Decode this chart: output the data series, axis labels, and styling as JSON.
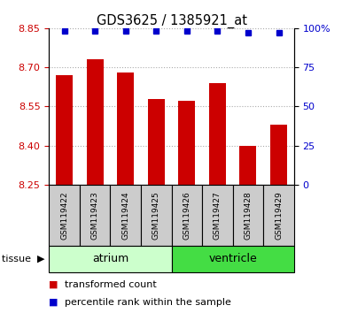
{
  "title": "GDS3625 / 1385921_at",
  "samples": [
    "GSM119422",
    "GSM119423",
    "GSM119424",
    "GSM119425",
    "GSM119426",
    "GSM119427",
    "GSM119428",
    "GSM119429"
  ],
  "red_values": [
    8.67,
    8.73,
    8.68,
    8.58,
    8.57,
    8.64,
    8.4,
    8.48
  ],
  "blue_values": [
    98,
    98,
    98,
    98,
    98,
    98,
    97,
    97
  ],
  "ylim_left": [
    8.25,
    8.85
  ],
  "ylim_right": [
    0,
    100
  ],
  "yticks_left": [
    8.25,
    8.4,
    8.55,
    8.7,
    8.85
  ],
  "yticks_right": [
    0,
    25,
    50,
    75,
    100
  ],
  "ytick_labels_right": [
    "0",
    "25",
    "50",
    "75",
    "100%"
  ],
  "bar_color": "#cc0000",
  "dot_color": "#0000cc",
  "grid_color": "#aaaaaa",
  "tissue_labels": [
    {
      "label": "atrium",
      "start": 0,
      "end": 4,
      "color": "#ccffcc"
    },
    {
      "label": "ventricle",
      "start": 4,
      "end": 8,
      "color": "#44dd44"
    }
  ],
  "bar_width": 0.55,
  "baseline": 8.25,
  "tick_label_color_left": "#cc0000",
  "tick_label_color_right": "#0000cc",
  "xticklabel_bg": "#cccccc",
  "legend_items": [
    {
      "color": "#cc0000",
      "label": "transformed count"
    },
    {
      "color": "#0000cc",
      "label": "percentile rank within the sample"
    }
  ],
  "figsize": [
    3.95,
    3.54
  ],
  "dpi": 100
}
